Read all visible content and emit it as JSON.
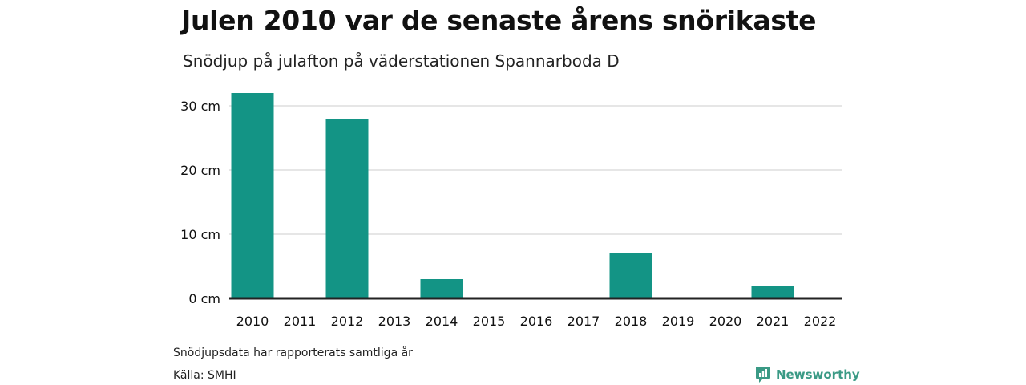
{
  "header": {
    "title": "Julen 2010 var de senaste årens snörikaste",
    "subtitle": "Snödjup på julafton på väderstationen Spannarboda D"
  },
  "footer": {
    "note": "Snödjupsdata har rapporterats samtliga år",
    "source": "Källa: SMHI",
    "brand": "Newsworthy",
    "brand_icon": "bar-chart-speech-icon"
  },
  "colors": {
    "bar": "#139485",
    "grid": "#dddddd",
    "baseline": "#222222",
    "brand": "#3a9a85"
  },
  "chart_data": {
    "type": "bar",
    "title": "Julen 2010 var de senaste årens snörikaste",
    "subtitle": "Snödjup på julafton på väderstationen Spannarboda D",
    "categories": [
      "2010",
      "2011",
      "2012",
      "2013",
      "2014",
      "2015",
      "2016",
      "2017",
      "2018",
      "2019",
      "2020",
      "2021",
      "2022"
    ],
    "values": [
      32,
      0,
      28,
      0,
      3,
      0,
      0,
      0,
      7,
      0,
      0,
      2,
      0
    ],
    "unit": "cm",
    "yticks": [
      "0 cm",
      "10 cm",
      "20 cm",
      "30 cm"
    ],
    "ytick_values": [
      0,
      10,
      20,
      30
    ],
    "ylim": [
      0,
      32
    ],
    "grid": true,
    "legend": "none"
  }
}
